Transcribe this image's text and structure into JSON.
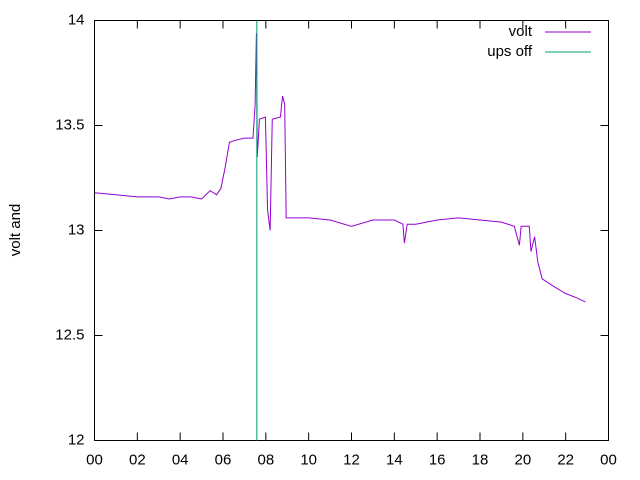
{
  "chart_data": {
    "type": "line",
    "y_label": "volt and",
    "xlim": [
      0,
      24
    ],
    "ylim": [
      12,
      14
    ],
    "xticks": [
      {
        "value": 0,
        "label": "00"
      },
      {
        "value": 2,
        "label": "02"
      },
      {
        "value": 4,
        "label": "04"
      },
      {
        "value": 6,
        "label": "06"
      },
      {
        "value": 8,
        "label": "08"
      },
      10,
      12,
      14,
      16,
      18,
      20,
      22,
      {
        "value": 24,
        "label": "00"
      }
    ],
    "yticks": [
      12,
      12.5,
      13,
      13.5,
      14
    ],
    "legend": "top-right",
    "series": [
      {
        "name": "volt",
        "color": "#9400d3",
        "x": [
          0,
          1,
          2,
          3,
          3.5,
          4,
          4.5,
          5,
          5.4,
          5.7,
          5.9,
          6.1,
          6.3,
          6.6,
          7.0,
          7.4,
          7.5,
          7.56,
          7.6,
          7.7,
          7.98,
          8.08,
          8.2,
          8.3,
          8.68,
          8.78,
          8.88,
          8.95,
          10,
          11,
          12,
          13,
          14,
          14.4,
          14.47,
          14.6,
          15,
          16,
          17,
          18,
          19,
          19.6,
          19.84,
          19.92,
          20.3,
          20.38,
          20.55,
          20.7,
          20.9,
          21.5,
          22,
          22.5,
          22.92
        ],
        "values": [
          13.18,
          13.17,
          13.16,
          13.16,
          13.15,
          13.16,
          13.16,
          13.15,
          13.19,
          13.17,
          13.2,
          13.3,
          13.42,
          13.43,
          13.44,
          13.44,
          13.6,
          13.94,
          13.35,
          13.53,
          13.54,
          13.1,
          13.0,
          13.53,
          13.54,
          13.64,
          13.6,
          13.06,
          13.06,
          13.05,
          13.02,
          13.05,
          13.05,
          13.03,
          12.94,
          13.03,
          13.03,
          13.05,
          13.06,
          13.05,
          13.04,
          13.02,
          12.93,
          13.02,
          13.02,
          12.9,
          12.97,
          12.85,
          12.77,
          12.73,
          12.7,
          12.68,
          12.66
        ]
      },
      {
        "name": "ups off",
        "color": "#009e73",
        "x": [
          7.58,
          7.58
        ],
        "values": [
          12,
          14
        ]
      }
    ]
  }
}
